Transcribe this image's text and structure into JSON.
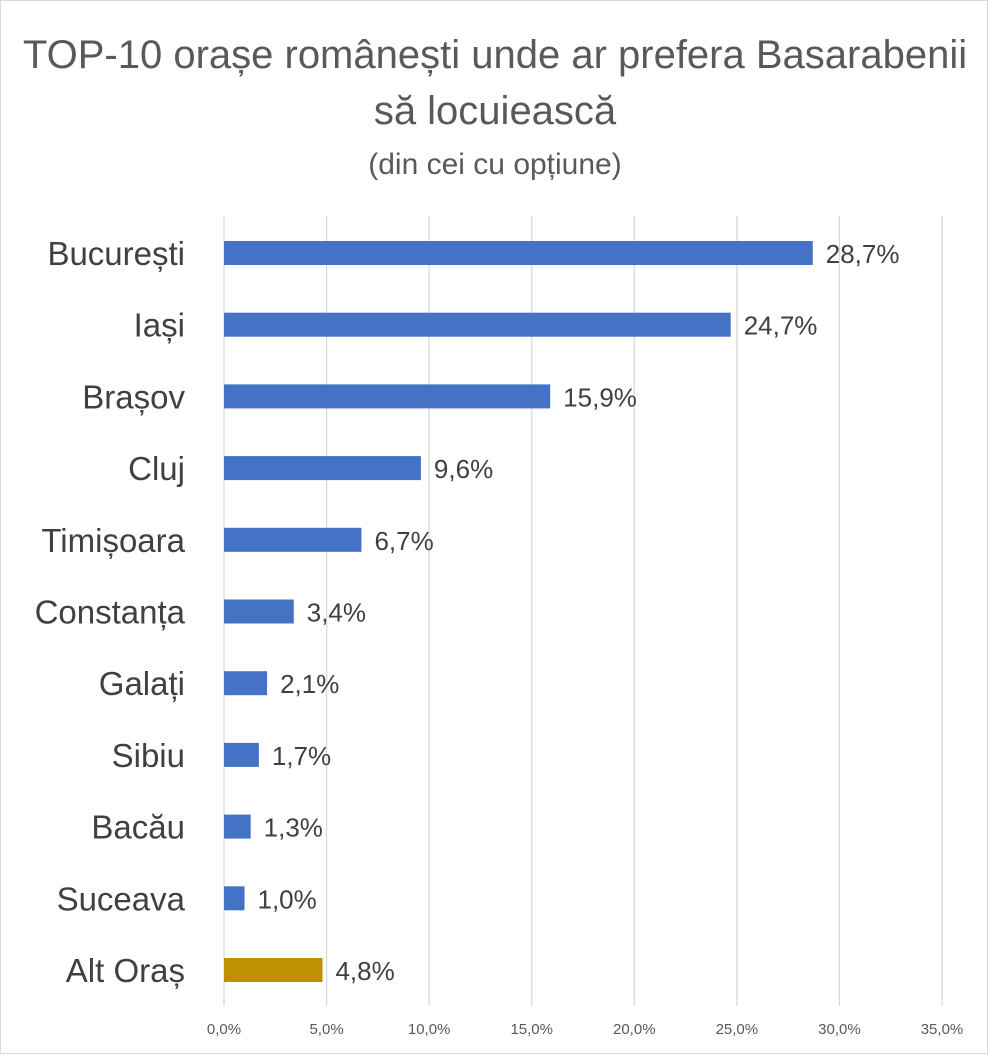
{
  "chart_data": {
    "type": "bar",
    "orientation": "horizontal",
    "title": "TOP-10 orașe românești unde ar prefera Basarabenii să locuiească",
    "subtitle": "(din cei cu opțiune)",
    "categories": [
      "București",
      "Iași",
      "Brașov",
      "Cluj",
      "Timișoara",
      "Constanța",
      "Galați",
      "Sibiu",
      "Bacău",
      "Suceava",
      "Alt Oraș"
    ],
    "values": [
      28.7,
      24.7,
      15.9,
      9.6,
      6.7,
      3.4,
      2.1,
      1.7,
      1.3,
      1.0,
      4.8
    ],
    "value_labels": [
      "28,7%",
      "24,7%",
      "15,9%",
      "9,6%",
      "6,7%",
      "3,4%",
      "2,1%",
      "1,7%",
      "1,3%",
      "1,0%",
      "4,8%"
    ],
    "bar_colors": [
      "#4472c4",
      "#4472c4",
      "#4472c4",
      "#4472c4",
      "#4472c4",
      "#4472c4",
      "#4472c4",
      "#4472c4",
      "#4472c4",
      "#4472c4",
      "#bf9000"
    ],
    "xlim": [
      0,
      35
    ],
    "x_ticks": [
      0,
      5,
      10,
      15,
      20,
      25,
      30,
      35
    ],
    "x_tick_labels": [
      "0,0%",
      "5,0%",
      "10,0%",
      "15,0%",
      "20,0%",
      "25,0%",
      "30,0%",
      "35,0%"
    ],
    "grid": true,
    "legend": "none"
  }
}
